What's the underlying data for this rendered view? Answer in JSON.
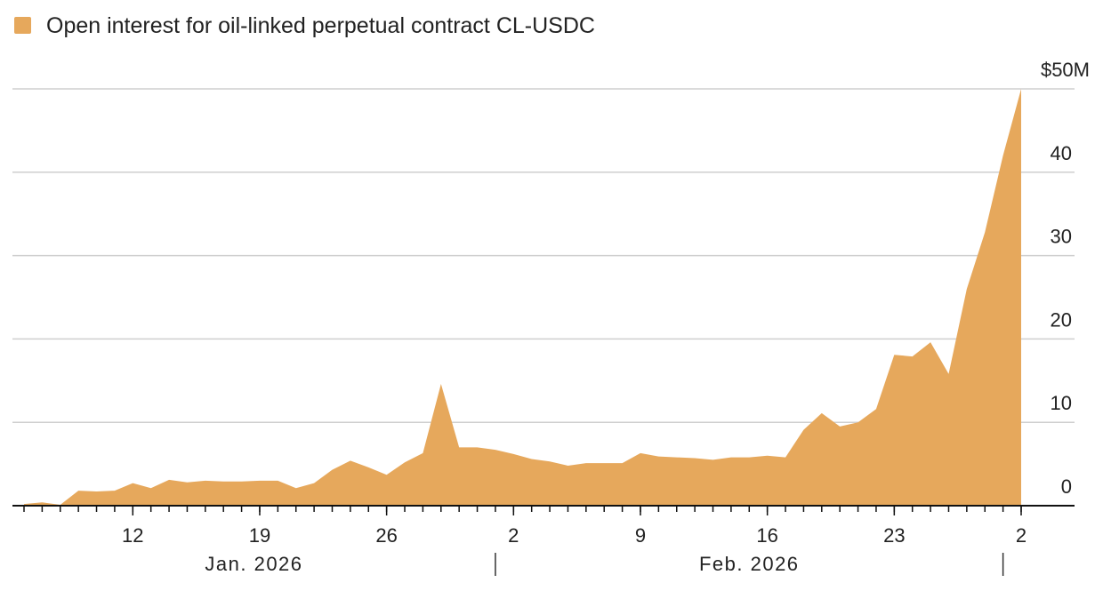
{
  "chart_data": {
    "type": "area",
    "series": [
      {
        "name": "Open interest for oil-linked perpetual contract CL-USDC",
        "color": "#e6a85c",
        "values": [
          0.2,
          0.4,
          0.1,
          1.8,
          1.7,
          1.8,
          2.7,
          2.1,
          3.1,
          2.8,
          3.0,
          2.9,
          2.9,
          3.0,
          3.0,
          2.1,
          2.7,
          4.3,
          5.4,
          4.6,
          3.7,
          5.2,
          6.3,
          14.6,
          7.0,
          7.0,
          6.7,
          6.2,
          5.6,
          5.3,
          4.8,
          5.1,
          5.1,
          5.1,
          6.3,
          5.9,
          5.8,
          5.7,
          5.5,
          5.8,
          5.8,
          6.0,
          5.8,
          9.1,
          11.1,
          9.5,
          10.0,
          11.6,
          18.1,
          17.9,
          19.6,
          15.8,
          26.0,
          32.8,
          42.0,
          50.0
        ]
      }
    ],
    "x": [
      "2026-01-06",
      "2026-01-07",
      "2026-01-08",
      "2026-01-09",
      "2026-01-10",
      "2026-01-11",
      "2026-01-12",
      "2026-01-13",
      "2026-01-14",
      "2026-01-15",
      "2026-01-16",
      "2026-01-17",
      "2026-01-18",
      "2026-01-19",
      "2026-01-20",
      "2026-01-21",
      "2026-01-22",
      "2026-01-23",
      "2026-01-24",
      "2026-01-25",
      "2026-01-26",
      "2026-01-27",
      "2026-01-28",
      "2026-01-29",
      "2026-01-30",
      "2026-01-31",
      "2026-02-01",
      "2026-02-02",
      "2026-02-03",
      "2026-02-04",
      "2026-02-05",
      "2026-02-06",
      "2026-02-07",
      "2026-02-08",
      "2026-02-09",
      "2026-02-10",
      "2026-02-11",
      "2026-02-12",
      "2026-02-13",
      "2026-02-14",
      "2026-02-15",
      "2026-02-16",
      "2026-02-17",
      "2026-02-18",
      "2026-02-19",
      "2026-02-20",
      "2026-02-21",
      "2026-02-22",
      "2026-02-23",
      "2026-02-24",
      "2026-02-25",
      "2026-02-26",
      "2026-02-27",
      "2026-02-28",
      "2026-03-01",
      "2026-03-02"
    ],
    "xticks": [
      {
        "value": "2026-01-12",
        "label": "12"
      },
      {
        "value": "2026-01-19",
        "label": "19"
      },
      {
        "value": "2026-01-26",
        "label": "26"
      },
      {
        "value": "2026-02-02",
        "label": "2"
      },
      {
        "value": "2026-02-09",
        "label": "9"
      },
      {
        "value": "2026-02-16",
        "label": "16"
      },
      {
        "value": "2026-02-23",
        "label": "23"
      },
      {
        "value": "2026-03-02",
        "label": "2"
      }
    ],
    "month_labels": [
      "Jan. 2026",
      "Feb. 2026"
    ],
    "ylim": [
      0,
      50
    ],
    "yticks": [
      0,
      10,
      20,
      30,
      40,
      {
        "value": 50,
        "label": "$50M"
      }
    ],
    "grid": true
  }
}
